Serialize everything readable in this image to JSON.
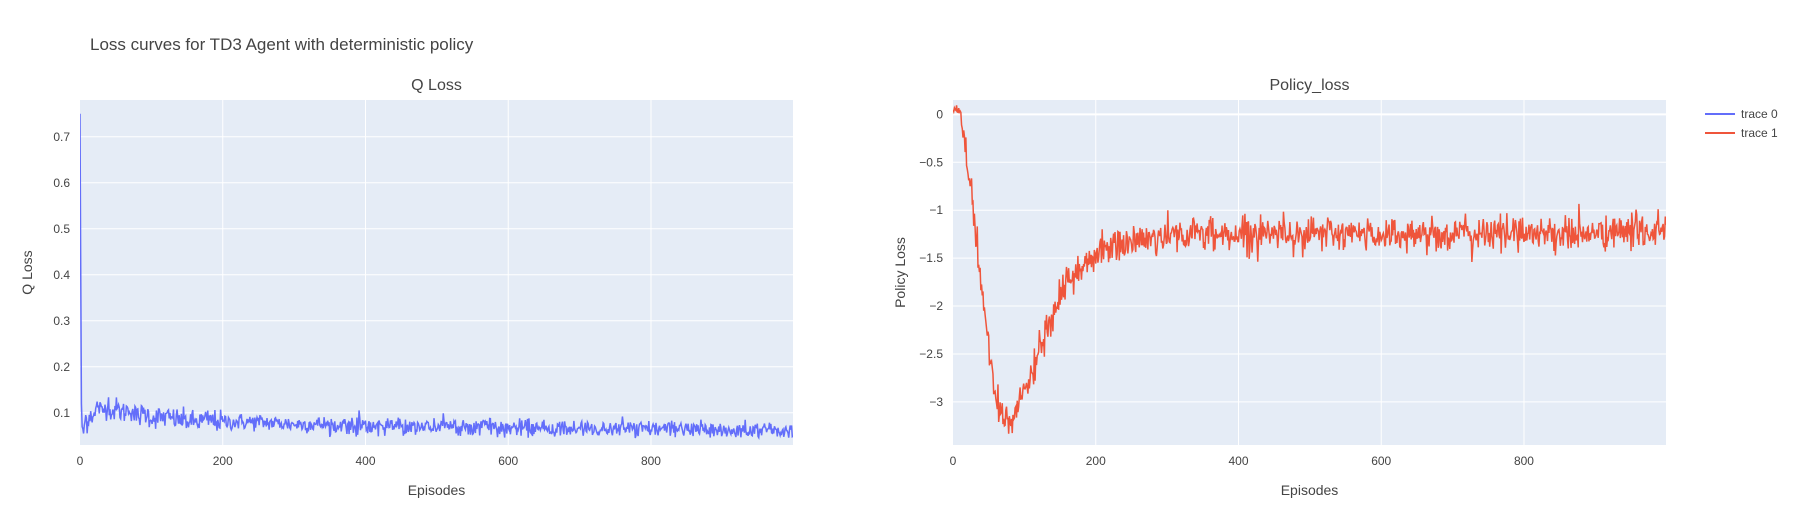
{
  "title": "Loss curves for TD3 Agent with deterministic policy",
  "chart_data": [
    {
      "type": "line",
      "title": "Q Loss",
      "xlabel": "Episodes",
      "ylabel": "Q Loss",
      "xlim": [
        0,
        999
      ],
      "ylim": [
        0.03,
        0.78
      ],
      "xticks": [
        0,
        200,
        400,
        600,
        800
      ],
      "yticks": [
        0.1,
        0.2,
        0.3,
        0.4,
        0.5,
        0.6,
        0.7
      ],
      "ytick_labels": [
        "0.1",
        "0.2",
        "0.3",
        "0.4",
        "0.5",
        "0.6",
        "0.7"
      ],
      "series": [
        {
          "name": "trace 0",
          "color": "#636efa",
          "x": [
            0,
            1,
            2,
            3,
            5,
            8,
            10,
            15,
            20,
            25,
            30,
            35,
            40,
            45,
            50,
            60,
            70,
            80,
            90,
            100,
            120,
            140,
            160,
            180,
            200,
            250,
            300,
            350,
            400,
            450,
            500,
            550,
            600,
            650,
            700,
            750,
            800,
            850,
            900,
            950,
            999
          ],
          "y": [
            0.75,
            0.42,
            0.12,
            0.07,
            0.06,
            0.09,
            0.08,
            0.1,
            0.09,
            0.12,
            0.1,
            0.11,
            0.12,
            0.1,
            0.11,
            0.1,
            0.11,
            0.09,
            0.1,
            0.09,
            0.09,
            0.085,
            0.08,
            0.085,
            0.08,
            0.08,
            0.075,
            0.075,
            0.07,
            0.072,
            0.07,
            0.07,
            0.068,
            0.065,
            0.065,
            0.065,
            0.065,
            0.063,
            0.063,
            0.062,
            0.06
          ]
        }
      ]
    },
    {
      "type": "line",
      "title": "Policy_loss",
      "xlabel": "Episodes",
      "ylabel": "Policy Loss",
      "xlim": [
        0,
        999
      ],
      "ylim": [
        -3.45,
        0.15
      ],
      "xticks": [
        0,
        200,
        400,
        600,
        800
      ],
      "yticks": [
        0,
        -0.5,
        -1,
        -1.5,
        -2,
        -2.5,
        -3
      ],
      "ytick_labels": [
        "0",
        "−0.5",
        "−1",
        "−1.5",
        "−2",
        "−2.5",
        "−3"
      ],
      "series": [
        {
          "name": "trace 1",
          "color": "#EF553B",
          "x": [
            0,
            5,
            10,
            15,
            20,
            25,
            30,
            35,
            40,
            45,
            50,
            55,
            60,
            65,
            70,
            75,
            80,
            90,
            100,
            110,
            120,
            130,
            140,
            150,
            160,
            170,
            180,
            190,
            200,
            220,
            240,
            260,
            280,
            300,
            350,
            400,
            450,
            500,
            550,
            600,
            650,
            700,
            750,
            800,
            850,
            900,
            950,
            999
          ],
          "y": [
            0.02,
            0.05,
            0.04,
            -0.3,
            -0.6,
            -0.7,
            -1.1,
            -1.5,
            -1.8,
            -2.1,
            -2.4,
            -2.7,
            -3.0,
            -3.1,
            -3.2,
            -3.15,
            -3.2,
            -3.1,
            -2.9,
            -2.7,
            -2.5,
            -2.3,
            -2.1,
            -1.9,
            -1.8,
            -1.7,
            -1.6,
            -1.5,
            -1.45,
            -1.4,
            -1.35,
            -1.3,
            -1.3,
            -1.25,
            -1.25,
            -1.25,
            -1.22,
            -1.25,
            -1.25,
            -1.25,
            -1.25,
            -1.25,
            -1.25,
            -1.22,
            -1.25,
            -1.25,
            -1.22,
            -1.2
          ]
        }
      ]
    }
  ],
  "legend": [
    {
      "label": "trace 0",
      "color": "#636efa"
    },
    {
      "label": "trace 1",
      "color": "#EF553B"
    }
  ]
}
